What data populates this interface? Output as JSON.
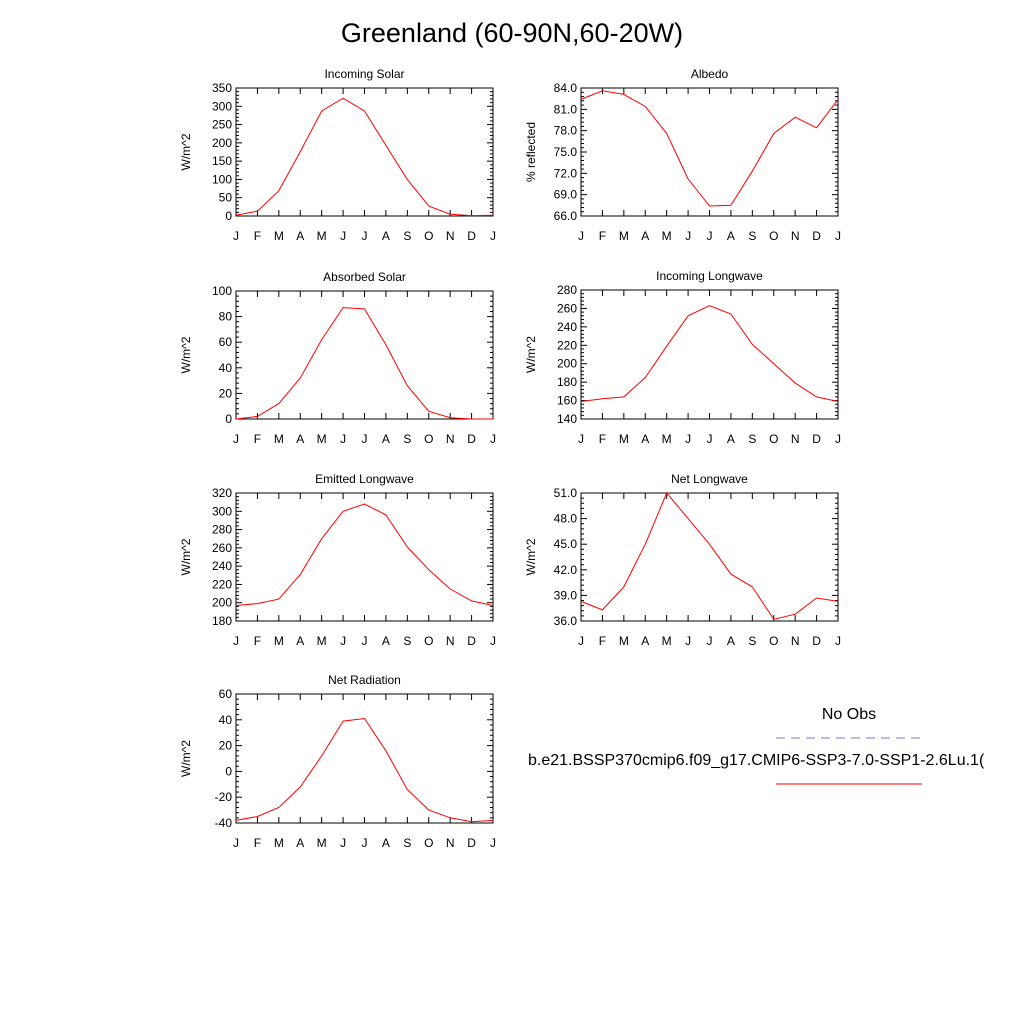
{
  "title": "Greenland (60-90N,60-20W)",
  "months": [
    "J",
    "F",
    "M",
    "A",
    "M",
    "J",
    "J",
    "A",
    "S",
    "O",
    "N",
    "D",
    "J"
  ],
  "legend": {
    "obs_label": "No Obs",
    "obs_color": "#7777dd",
    "case_label": "b.e21.BSSP370cmip6.f09_g17.CMIP6-SSP3-7.0-SSP1-2.6Lu.1(",
    "case_color": "#ff0000"
  },
  "chart_data": [
    {
      "type": "line",
      "title": "Incoming Solar",
      "ylabel": "W/m^2",
      "ylim": [
        0,
        350
      ],
      "yticks": [
        0,
        50,
        100,
        150,
        200,
        250,
        300,
        350
      ],
      "ytick_decimals": 0,
      "series": [
        {
          "values": [
            2,
            13,
            69,
            176,
            287,
            322,
            287,
            193,
            100,
            27,
            5,
            1,
            2
          ]
        }
      ]
    },
    {
      "type": "line",
      "title": "Albedo",
      "ylabel": "% reflected",
      "ylim": [
        66,
        84
      ],
      "yticks": [
        66,
        69,
        72,
        75,
        78,
        81,
        84
      ],
      "ytick_decimals": 1,
      "series": [
        {
          "values": [
            82.4,
            83.6,
            83.1,
            81.4,
            77.6,
            71.2,
            67.4,
            67.5,
            72.3,
            77.6,
            79.9,
            78.4,
            82.4
          ]
        }
      ]
    },
    {
      "type": "line",
      "title": "Absorbed Solar",
      "ylabel": "W/m^2",
      "ylim": [
        0,
        100
      ],
      "yticks": [
        0,
        20,
        40,
        60,
        80,
        100
      ],
      "ytick_decimals": 0,
      "series": [
        {
          "values": [
            0,
            2,
            12,
            32,
            62,
            87,
            86,
            58,
            26,
            6,
            1,
            0,
            0
          ]
        }
      ]
    },
    {
      "type": "line",
      "title": "Incoming Longwave",
      "ylabel": "W/m^2",
      "ylim": [
        140,
        280
      ],
      "yticks": [
        140,
        160,
        180,
        200,
        220,
        240,
        260,
        280
      ],
      "ytick_decimals": 0,
      "series": [
        {
          "values": [
            159,
            162,
            164,
            185,
            219,
            252,
            263,
            254,
            221,
            200,
            179,
            164,
            159
          ]
        }
      ]
    },
    {
      "type": "line",
      "title": "Emitted Longwave",
      "ylabel": "W/m^2",
      "ylim": [
        180,
        320
      ],
      "yticks": [
        180,
        200,
        220,
        240,
        260,
        280,
        300,
        320
      ],
      "ytick_decimals": 0,
      "series": [
        {
          "values": [
            197,
            199,
            204,
            231,
            270,
            300,
            308,
            296,
            261,
            236,
            215,
            202,
            197
          ]
        }
      ]
    },
    {
      "type": "line",
      "title": "Net Longwave",
      "ylabel": "W/m^2",
      "ylim": [
        36,
        51
      ],
      "yticks": [
        36,
        39,
        42,
        45,
        48,
        51
      ],
      "ytick_decimals": 1,
      "series": [
        {
          "values": [
            38.3,
            37.3,
            40.0,
            45.0,
            51.0,
            48.0,
            45.0,
            41.5,
            40.0,
            36.2,
            36.8,
            38.7,
            38.3
          ]
        }
      ]
    },
    {
      "type": "line",
      "title": "Net Radiation",
      "ylabel": "W/m^2",
      "ylim": [
        -40,
        60
      ],
      "yticks": [
        -40,
        -20,
        0,
        20,
        40,
        60
      ],
      "ytick_decimals": 0,
      "series": [
        {
          "values": [
            -38,
            -35,
            -28,
            -12,
            12,
            39,
            41,
            16,
            -14,
            -30,
            -36,
            -39,
            -38
          ]
        }
      ]
    }
  ]
}
